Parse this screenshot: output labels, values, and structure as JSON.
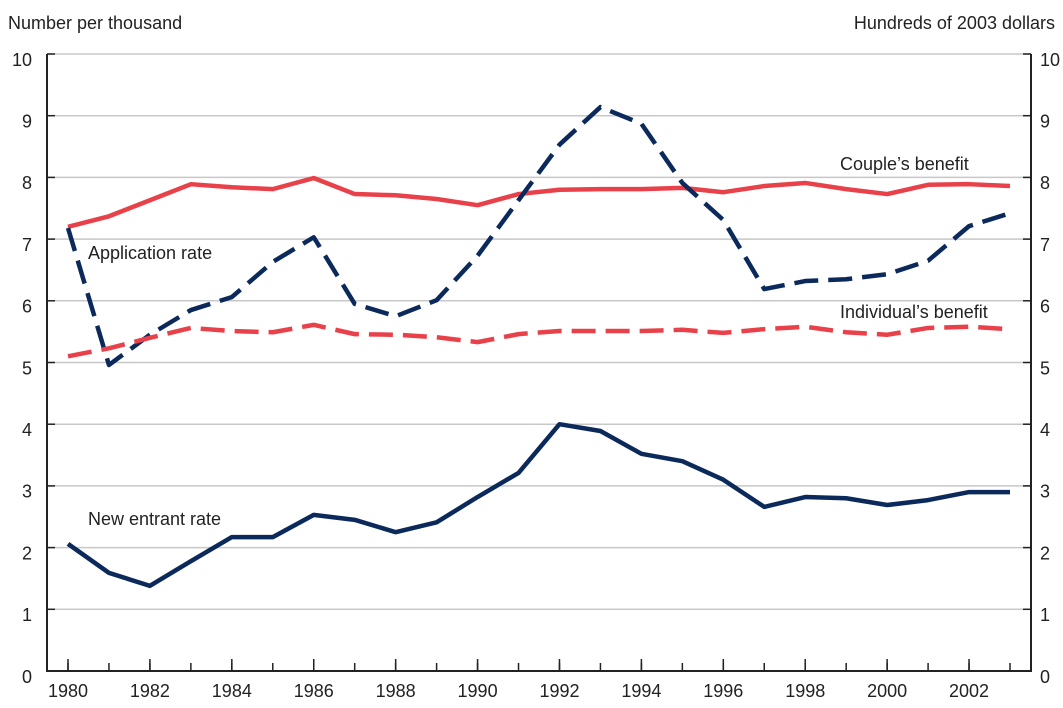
{
  "chart_data": {
    "type": "line",
    "ylabel": "Number per thousand",
    "y2label": "Hundreds of 2003 dollars",
    "x": [
      1980,
      1981,
      1982,
      1983,
      1984,
      1985,
      1986,
      1987,
      1988,
      1989,
      1990,
      1991,
      1992,
      1993,
      1994,
      1995,
      1996,
      1997,
      1998,
      1999,
      2000,
      2001,
      2002,
      2003
    ],
    "xlim": [
      1980,
      2003
    ],
    "xticks": [
      1980,
      1982,
      1984,
      1986,
      1988,
      1990,
      1992,
      1994,
      1996,
      1998,
      2000,
      2002
    ],
    "ylim": [
      0,
      10
    ],
    "yticks": [
      0,
      1,
      2,
      3,
      4,
      5,
      6,
      7,
      8,
      9,
      10
    ],
    "y2lim": [
      0,
      10
    ],
    "y2ticks": [
      0,
      1,
      2,
      3,
      4,
      5,
      6,
      7,
      8,
      9,
      10
    ],
    "grid": true,
    "series": [
      {
        "name": "Couple’s benefit",
        "color": "#e8414a",
        "dashed": false,
        "axis": "y2",
        "values": [
          7.2,
          7.37,
          7.63,
          7.89,
          7.84,
          7.81,
          7.99,
          7.73,
          7.71,
          7.65,
          7.55,
          7.73,
          7.8,
          7.81,
          7.81,
          7.83,
          7.76,
          7.86,
          7.91,
          7.81,
          7.73,
          7.88,
          7.89,
          7.86
        ]
      },
      {
        "name": "Application rate",
        "color": "#0b2a5b",
        "dashed": true,
        "values": [
          7.18,
          4.96,
          5.45,
          5.85,
          6.06,
          6.63,
          7.03,
          5.95,
          5.75,
          6.01,
          6.73,
          7.63,
          8.53,
          9.14,
          8.87,
          7.91,
          7.31,
          6.19,
          6.32,
          6.35,
          6.43,
          6.65,
          7.21,
          7.42
        ]
      },
      {
        "name": "Individual’s benefit",
        "color": "#e8414a",
        "dashed": true,
        "axis": "y2",
        "values": [
          5.1,
          5.23,
          5.4,
          5.56,
          5.51,
          5.49,
          5.61,
          5.46,
          5.45,
          5.41,
          5.33,
          5.46,
          5.51,
          5.51,
          5.51,
          5.53,
          5.48,
          5.54,
          5.58,
          5.49,
          5.45,
          5.56,
          5.58,
          5.54
        ]
      },
      {
        "name": "New entrant rate",
        "color": "#0b2a5b",
        "dashed": false,
        "values": [
          2.06,
          1.59,
          1.38,
          1.78,
          2.17,
          2.17,
          2.53,
          2.45,
          2.25,
          2.41,
          2.82,
          3.21,
          4.0,
          3.89,
          3.52,
          3.4,
          3.1,
          2.66,
          2.82,
          2.8,
          2.69,
          2.77,
          2.9,
          2.9
        ]
      }
    ]
  }
}
